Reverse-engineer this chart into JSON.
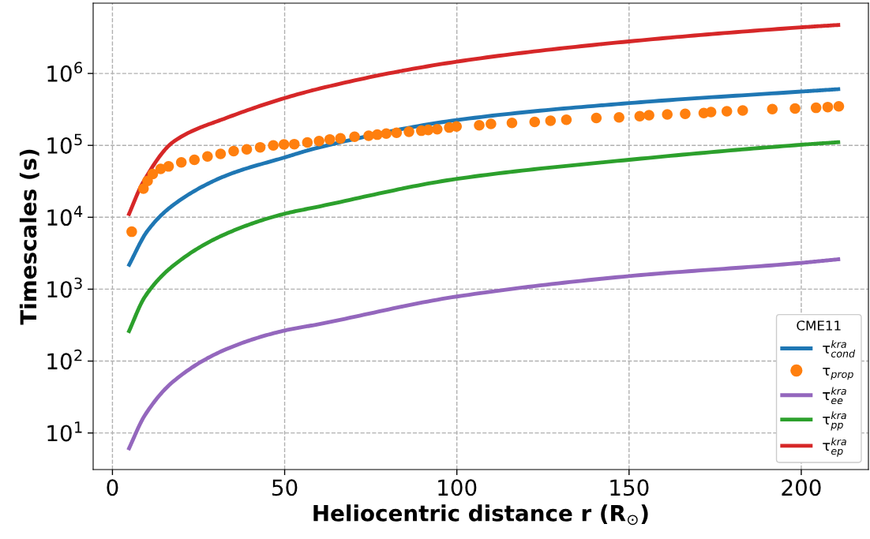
{
  "chart_data": {
    "type": "line",
    "xlabel": "Heliocentric distance r (R$_{⊙}$)",
    "ylabel": "Timescales (s)",
    "legend_title": "CME11",
    "legend": "bottom right",
    "grid": true,
    "line_style": "solid",
    "log": "y",
    "xlim": [
      -5.6,
      219.5
    ],
    "xticks": [
      0,
      50,
      100,
      150,
      200
    ],
    "ylim": [
      3.1,
      9500000
    ],
    "yticks": [
      {
        "value": 10,
        "label": "10$^{1}$"
      },
      {
        "value": 100,
        "label": "10$^{2}$"
      },
      {
        "value": 1000,
        "label": "10$^{3}$"
      },
      {
        "value": 10000,
        "label": "10$^{4}$"
      },
      {
        "value": 100000,
        "label": "10$^{5}$"
      },
      {
        "value": 1000000,
        "label": "10$^{6}$"
      }
    ],
    "series": [
      {
        "name": "τ$^{kra}$$_{cond}$",
        "color": "#1f77b4",
        "x": [
          4.6,
          10.2,
          17.8,
          33,
          50,
          59,
          100,
          150,
          200,
          211.3
        ],
        "values": [
          2070,
          6500,
          15000,
          38000,
          68000,
          91000,
          225000,
          387000,
          560000,
          607000
        ]
      },
      {
        "name": "τ$_{prop}$",
        "type": "scatter",
        "marker": "circle",
        "color": "#ff7f0e",
        "x": [
          5.6,
          9.0,
          10.2,
          11.7,
          14,
          16.3,
          20,
          23.8,
          27.6,
          31.4,
          35.2,
          39,
          42.9,
          46.7,
          49.8,
          52.8,
          56.6,
          60.0,
          63.1,
          66.2,
          70.3,
          74.4,
          76.9,
          79.5,
          82.5,
          86.1,
          89.7,
          91.7,
          94.3,
          97.8,
          99.9,
          106.5,
          109.9,
          116.0,
          122.6,
          127.2,
          131.8,
          140.5,
          147.1,
          153.1,
          155.8,
          161.1,
          166.3,
          171.7,
          173.8,
          178.4,
          183.0,
          191.6,
          198.2,
          204.3,
          207.7,
          210.9
        ],
        "values": [
          6300,
          25000,
          32000,
          40000,
          47000,
          51000,
          58000,
          63000,
          70000,
          76000,
          83000,
          88000,
          94000,
          100000,
          103000,
          104000,
          110000,
          115000,
          121000,
          125000,
          132000,
          136000,
          141000,
          146000,
          150000,
          155000,
          160000,
          164000,
          168000,
          177000,
          183000,
          190000,
          199000,
          205000,
          212000,
          220000,
          227000,
          240000,
          245000,
          254000,
          263000,
          269000,
          275000,
          281000,
          291000,
          298000,
          305000,
          319000,
          326000,
          333000,
          341000,
          349000
        ]
      },
      {
        "name": "τ$^{kra}$$_{ee}$",
        "color": "#9467bd",
        "x": [
          4.6,
          9.4,
          17.8,
          33,
          50,
          59,
          100,
          150,
          200,
          211.3
        ],
        "values": [
          5.8,
          17.6,
          52.7,
          146,
          266,
          320,
          790,
          1520,
          2320,
          2620
        ]
      },
      {
        "name": "τ$^{kra}$$_{pp}$",
        "color": "#2ca02c",
        "x": [
          4.6,
          9.4,
          17.8,
          33,
          50,
          59,
          100,
          150,
          200,
          211.3
        ],
        "values": [
          247,
          781,
          2150,
          5900,
          11200,
          13800,
          34200,
          63000,
          102000,
          111000
        ]
      },
      {
        "name": "τ$^{kra}$$_{ep}$",
        "color": "#d62728",
        "x": [
          4.6,
          8.7,
          17.8,
          33,
          59,
          100,
          150,
          200,
          211.3
        ],
        "values": [
          10500,
          29400,
          113000,
          240000,
          597000,
          1460000,
          2790000,
          4380000,
          4740000
        ]
      }
    ]
  }
}
